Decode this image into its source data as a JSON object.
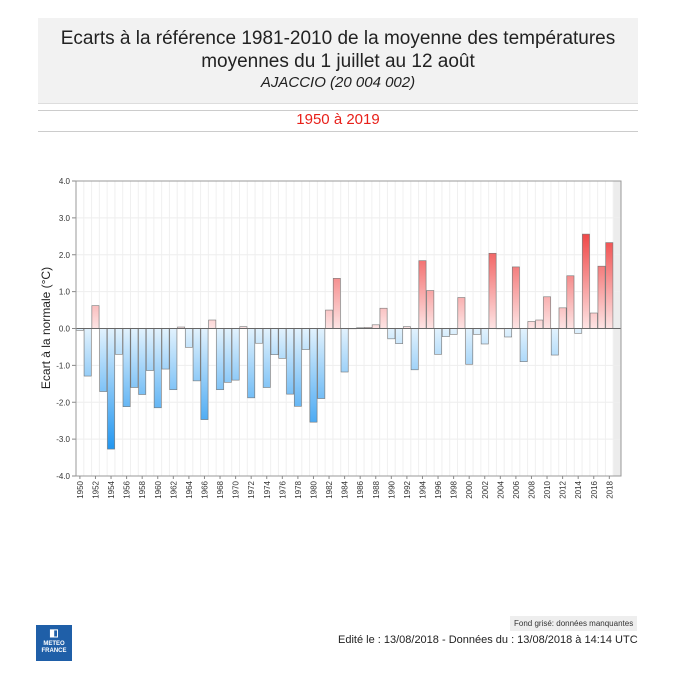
{
  "header": {
    "title_line1": "Ecarts à la référence 1981-2010 de la moyenne des températures",
    "title_line2": "moyennes du 1 juillet au 12 août",
    "station": "AJACCIO (20 004 002)",
    "period": "1950 à 2019"
  },
  "footer": {
    "missing_note": "Fond grisé: données manquantes",
    "edited": "Edité le : 13/08/2018 - Données du : 13/08/2018 à 14:14 UTC",
    "logo_text": "METEO FRANCE"
  },
  "colors": {
    "positive": "#ef4444",
    "negative": "#2196f0",
    "missing_bg": "#ececec",
    "period": "#e8201a"
  },
  "chart_data": {
    "type": "bar",
    "title": "Ecarts à la référence 1981-2010 de la moyenne des températures moyennes du 1 juillet au 12 août",
    "ylabel": "Ecart à la normale (°C)",
    "ylim": [
      -4.0,
      4.0
    ],
    "yticks": [
      "4.0",
      "3.0",
      "2.0",
      "1.0",
      "0.0",
      "-1.0",
      "-2.0",
      "-3.0",
      "-4.0"
    ],
    "grid": true,
    "missing": [
      2019
    ],
    "x": [
      1950,
      1951,
      1952,
      1953,
      1954,
      1955,
      1956,
      1957,
      1958,
      1959,
      1960,
      1961,
      1962,
      1963,
      1964,
      1965,
      1966,
      1967,
      1968,
      1969,
      1970,
      1971,
      1972,
      1973,
      1974,
      1975,
      1976,
      1977,
      1978,
      1979,
      1980,
      1981,
      1982,
      1983,
      1984,
      1985,
      1986,
      1987,
      1988,
      1989,
      1990,
      1991,
      1992,
      1993,
      1994,
      1995,
      1996,
      1997,
      1998,
      1999,
      2000,
      2001,
      2002,
      2003,
      2004,
      2005,
      2006,
      2007,
      2008,
      2009,
      2010,
      2011,
      2012,
      2013,
      2014,
      2015,
      2016,
      2017,
      2018
    ],
    "values": [
      -0.05,
      -1.29,
      0.62,
      -1.71,
      -3.27,
      -0.7,
      -2.12,
      -1.6,
      -1.79,
      -1.14,
      -2.15,
      -1.1,
      -1.66,
      0.04,
      -0.51,
      -1.42,
      -2.47,
      0.23,
      -1.66,
      -1.46,
      -1.4,
      0.05,
      -1.88,
      -0.4,
      -1.6,
      -0.71,
      -0.81,
      -1.78,
      -2.11,
      -0.57,
      -2.54,
      -1.9,
      0.5,
      1.36,
      -1.18,
      0.0,
      0.02,
      0.03,
      0.1,
      0.55,
      -0.28,
      -0.41,
      0.05,
      -1.12,
      1.84,
      1.03,
      -0.7,
      -0.22,
      -0.16,
      0.84,
      -0.97,
      -0.16,
      -0.42,
      2.04,
      0.0,
      -0.23,
      1.67,
      -0.9,
      0.19,
      0.23,
      0.86,
      -0.72,
      0.56,
      1.43,
      -0.13,
      2.56,
      0.42,
      1.69,
      2.33
    ]
  }
}
